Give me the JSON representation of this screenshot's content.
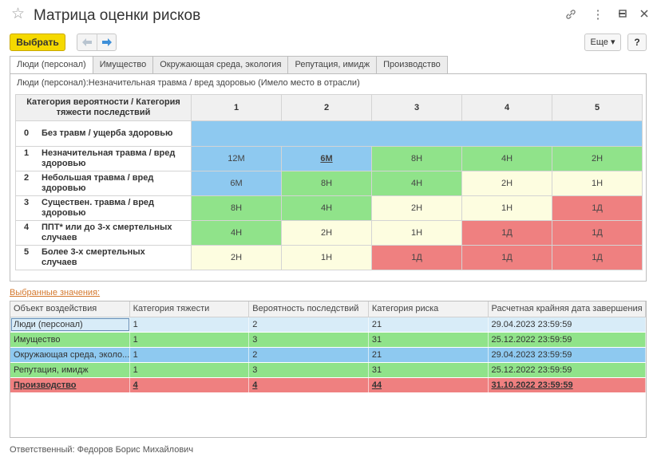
{
  "window": {
    "title": "Матрица оценки рисков",
    "icons": [
      "star-icon",
      "link-icon",
      "more-vertical-icon",
      "minimize-icon",
      "maximize-icon",
      "close-icon"
    ]
  },
  "toolbar": {
    "select_label": "Выбрать",
    "more_label": "Еще ▾",
    "help_label": "?"
  },
  "tabs": [
    {
      "label": "Люди (персонал)",
      "active": true
    },
    {
      "label": "Имущество"
    },
    {
      "label": "Окружающая среда, экология"
    },
    {
      "label": "Репутация, имидж"
    },
    {
      "label": "Производство"
    }
  ],
  "matrix": {
    "caption": "Люди (персонал):Незначительная травма / вред здоровью (Имело место в отрасли)",
    "corner": "Категория вероятности / Категория тяжести последствий",
    "columns": [
      "1",
      "2",
      "3",
      "4",
      "5"
    ],
    "rows": [
      {
        "num": "0",
        "label": "Без травм / ущерба здоровью",
        "cells": []
      },
      {
        "num": "1",
        "label": "Незначительная травма / вред здоровью",
        "cells": [
          "12М",
          "6М",
          "8Н",
          "4Н",
          "2Н"
        ]
      },
      {
        "num": "2",
        "label": "Небольшая травма / вред здоровью",
        "cells": [
          "6М",
          "8Н",
          "4Н",
          "2Н",
          "1Н"
        ]
      },
      {
        "num": "3",
        "label": "Существен. травма / вред здоровью",
        "cells": [
          "8Н",
          "4Н",
          "2Н",
          "1Н",
          "1Д"
        ]
      },
      {
        "num": "4",
        "label": "ППТ* или до 3-х смертельных случаев",
        "cells": [
          "4Н",
          "2Н",
          "1Н",
          "1Д",
          "1Д"
        ]
      },
      {
        "num": "5",
        "label": "Более 3-х смертельных случаев",
        "cells": [
          "2Н",
          "1Н",
          "1Д",
          "1Д",
          "1Д"
        ]
      }
    ],
    "colors": {
      "blue": "#8ec9f0",
      "green": "#90e38a",
      "yellow": "#fdfde0",
      "red": "#ef8080"
    }
  },
  "selected": {
    "label": "Выбранные значения:",
    "headers": [
      "Объект воздействия",
      "Категория тяжести",
      "Вероятность последствий",
      "Категория риска",
      "Расчетная крайняя дата завершения"
    ],
    "rows": [
      {
        "cells": [
          "Люди (персонал)",
          "1",
          "2",
          "21",
          "29.04.2023 23:59:59"
        ],
        "color": "#d8ecf8"
      },
      {
        "cells": [
          "Имущество",
          "1",
          "3",
          "31",
          "25.12.2022 23:59:59"
        ],
        "color": "#90e38a"
      },
      {
        "cells": [
          "Окружающая среда, эколо...",
          "1",
          "2",
          "21",
          "29.04.2023 23:59:59"
        ],
        "color": "#8ec9f0"
      },
      {
        "cells": [
          "Репутация, имидж",
          "1",
          "3",
          "31",
          "25.12.2022 23:59:59"
        ],
        "color": "#90e38a"
      },
      {
        "cells": [
          "Производство",
          "4",
          "4",
          "44",
          "31.10.2022 23:59:59"
        ],
        "color": "#ef8080"
      }
    ]
  },
  "footer": {
    "responsible": "Ответственный:  Федоров Борис Михайлович"
  }
}
